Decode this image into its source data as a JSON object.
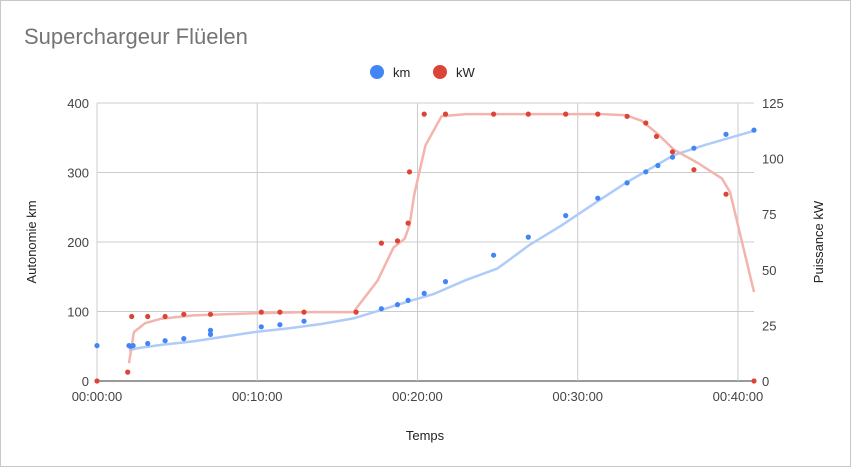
{
  "chart_data": {
    "type": "scatter",
    "title": "Superchargeur Flüelen",
    "xlabel": "Temps",
    "ylabel_left": "Autonomie km",
    "ylabel_right": "Puissance kW",
    "xlim": [
      "00:00:00",
      "00:41:00"
    ],
    "ylim_left": [
      0,
      400
    ],
    "ylim_right": [
      0,
      125
    ],
    "x_ticks": [
      "00:00:00",
      "00:10:00",
      "00:20:00",
      "00:30:00",
      "00:40:00"
    ],
    "y_ticks_left": [
      "0",
      "100",
      "200",
      "300",
      "400"
    ],
    "y_ticks_right": [
      "0",
      "25",
      "50",
      "75",
      "100",
      "125"
    ],
    "grid": true,
    "legend_position": "top",
    "series": [
      {
        "name": "km",
        "axis": "left",
        "color": "#4285f4",
        "trendline_color": "#aecbfa",
        "x": [
          "00:00:00",
          "00:02:00",
          "00:02:05",
          "00:02:15",
          "00:03:10",
          "00:04:15",
          "00:05:25",
          "00:07:05",
          "00:07:05",
          "00:10:15",
          "00:11:25",
          "00:12:55",
          "00:17:45",
          "00:18:45",
          "00:19:25",
          "00:20:25",
          "00:21:45",
          "00:24:45",
          "00:26:55",
          "00:29:15",
          "00:31:15",
          "00:33:05",
          "00:34:15",
          "00:35:00",
          "00:35:55",
          "00:37:15",
          "00:39:15",
          "00:41:00"
        ],
        "values": [
          51,
          51,
          50,
          51,
          54,
          58,
          61,
          67,
          73,
          78,
          81,
          86,
          104,
          110,
          116,
          126,
          143,
          181,
          207,
          238,
          263,
          285,
          301,
          310,
          322,
          335,
          355,
          361
        ],
        "trendline": [
          [
            2.0,
            44
          ],
          [
            2.5,
            47
          ],
          [
            4,
            52
          ],
          [
            6,
            57
          ],
          [
            8,
            64
          ],
          [
            10,
            71
          ],
          [
            12,
            76
          ],
          [
            14,
            82
          ],
          [
            16,
            90
          ],
          [
            18,
            104
          ],
          [
            19.5,
            115
          ],
          [
            21,
            125
          ],
          [
            23,
            145
          ],
          [
            25,
            162
          ],
          [
            27,
            196
          ],
          [
            29,
            224
          ],
          [
            31,
            255
          ],
          [
            33,
            285
          ],
          [
            34.5,
            305
          ],
          [
            36,
            325
          ],
          [
            38,
            340
          ],
          [
            41,
            360
          ]
        ]
      },
      {
        "name": "kW",
        "axis": "right",
        "color": "#db4437",
        "trendline_color": "#f4b4ae",
        "x": [
          "00:00:00",
          "00:01:55",
          "00:02:10",
          "00:03:10",
          "00:04:15",
          "00:05:25",
          "00:07:05",
          "00:10:15",
          "00:11:25",
          "00:12:55",
          "00:16:10",
          "00:17:45",
          "00:18:45",
          "00:19:25",
          "00:19:30",
          "00:20:25",
          "00:21:45",
          "00:24:45",
          "00:26:55",
          "00:29:15",
          "00:31:15",
          "00:33:05",
          "00:34:15",
          "00:34:55",
          "00:35:55",
          "00:37:15",
          "00:39:15",
          "00:41:00"
        ],
        "values": [
          0,
          4,
          29,
          29,
          29,
          30,
          30,
          31,
          31,
          31,
          31,
          62,
          63,
          71,
          94,
          120,
          120,
          120,
          120,
          120,
          120,
          119,
          116,
          110,
          103,
          95,
          84,
          0
        ],
        "trendline": [
          [
            2.0,
            8
          ],
          [
            2.3,
            22
          ],
          [
            3,
            26
          ],
          [
            4,
            28
          ],
          [
            6,
            29.5
          ],
          [
            10,
            30.5
          ],
          [
            13,
            31
          ],
          [
            16,
            31
          ],
          [
            17.5,
            45
          ],
          [
            18.5,
            60
          ],
          [
            19.2,
            64
          ],
          [
            19.5,
            70
          ],
          [
            19.8,
            84
          ],
          [
            20.5,
            106
          ],
          [
            21.5,
            119
          ],
          [
            23,
            120
          ],
          [
            31.5,
            120
          ],
          [
            33,
            119.5
          ],
          [
            34,
            117
          ],
          [
            35,
            111
          ],
          [
            36,
            104
          ],
          [
            37.5,
            98
          ],
          [
            39,
            91
          ],
          [
            39.5,
            85
          ],
          [
            40,
            70
          ],
          [
            41,
            40
          ]
        ]
      }
    ]
  }
}
